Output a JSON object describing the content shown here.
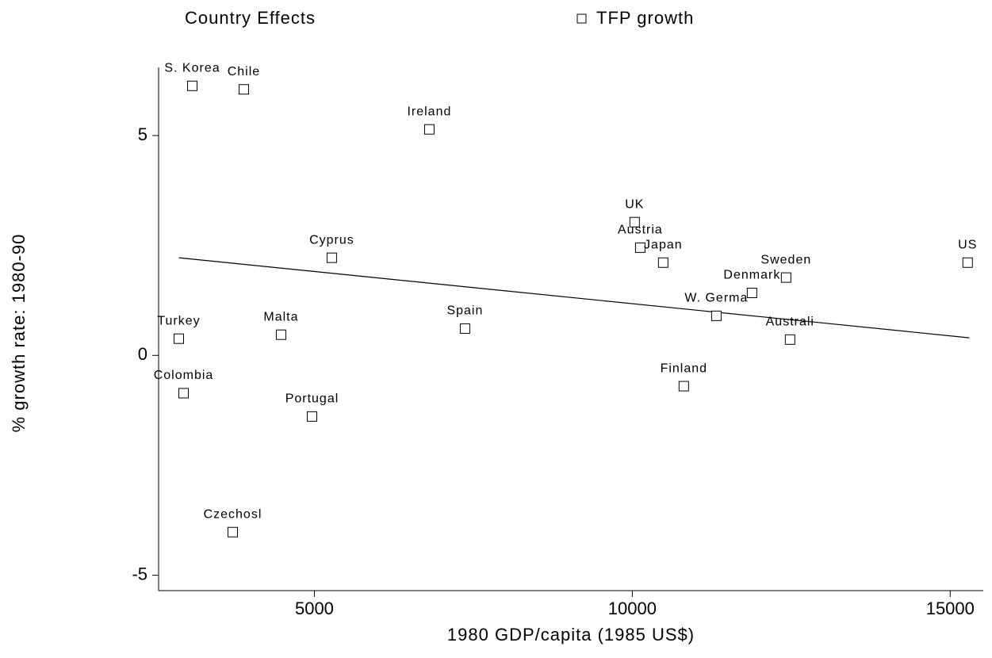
{
  "chart_data": {
    "type": "scatter",
    "title": "Country Effects",
    "xlabel": "1980 GDP/capita (1985 US$)",
    "ylabel": "% growth rate: 1980-90",
    "series": [
      {
        "name": "TFP growth",
        "color": "#000000",
        "labels": [
          "S. Korea",
          "Chile",
          "Ireland",
          "Cyprus",
          "Turkey",
          "Malta",
          "Colombia",
          "Portugal",
          "Czechosl",
          "Spain",
          "UK",
          "Austria",
          "Japan",
          "Denmark",
          "Sweden",
          "W. Germa",
          "Australi",
          "Finland",
          "US"
        ],
        "x": [
          3080,
          3890,
          6808,
          5274,
          2868,
          4476,
          2943,
          4963,
          3716,
          7369,
          10037,
          10125,
          10486,
          11883,
          12419,
          11322,
          12481,
          10810,
          15274
        ],
        "y": [
          6.13,
          6.05,
          5.14,
          2.22,
          0.38,
          0.47,
          -0.86,
          -1.39,
          -4.02,
          0.61,
          3.03,
          2.45,
          2.11,
          1.42,
          1.77,
          0.9,
          0.36,
          -0.7,
          2.11
        ]
      }
    ],
    "fit_line": {
      "x": [
        2868,
        15299
      ],
      "y": [
        2.22,
        0.4
      ]
    },
    "xlim": [
      2550,
      15520
    ],
    "ylim": [
      -5.35,
      6.55
    ],
    "xticks": [
      5000,
      10000,
      15000
    ],
    "yticks": [
      -5,
      0,
      5
    ]
  }
}
